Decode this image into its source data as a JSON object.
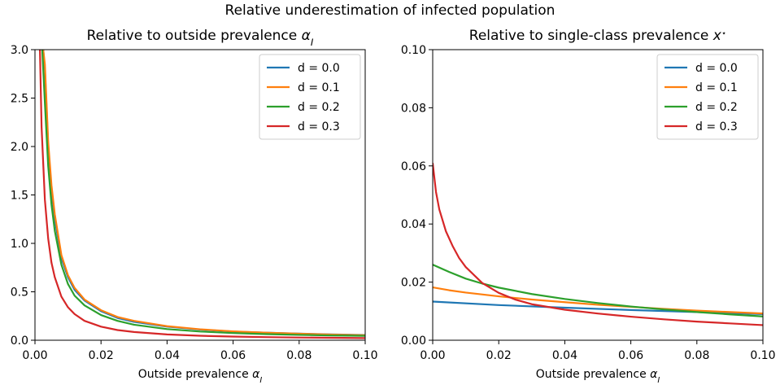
{
  "figure": {
    "suptitle": "Relative underestimation of infected population"
  },
  "colors": {
    "d0": "#1f77b4",
    "d1": "#ff7f0e",
    "d2": "#2ca02c",
    "d3": "#d62728"
  },
  "chart_data": [
    {
      "type": "line",
      "title": "Relative to outside prevalence α_I",
      "xlabel": "Outside prevalence α_I",
      "ylabel": "",
      "xlim": [
        0.0,
        0.1
      ],
      "ylim": [
        0.0,
        3.0
      ],
      "xticks": [
        "0.00",
        "0.02",
        "0.04",
        "0.06",
        "0.08",
        "0.10"
      ],
      "yticks": [
        "0.0",
        "0.5",
        "1.0",
        "1.5",
        "2.0",
        "2.5",
        "3.0"
      ],
      "grid": false,
      "legend": "top-right",
      "series": [
        {
          "name": "d = 0.0",
          "color": "#1f77b4",
          "x": [
            0.0025,
            0.003,
            0.004,
            0.005,
            0.006,
            0.008,
            0.01,
            0.012,
            0.015,
            0.02,
            0.025,
            0.03,
            0.04,
            0.05,
            0.06,
            0.07,
            0.08,
            0.09,
            0.1
          ],
          "y": [
            3.0,
            2.8,
            2.0,
            1.55,
            1.25,
            0.85,
            0.65,
            0.52,
            0.41,
            0.3,
            0.23,
            0.19,
            0.14,
            0.11,
            0.09,
            0.078,
            0.068,
            0.06,
            0.054
          ]
        },
        {
          "name": "d = 0.1",
          "color": "#ff7f0e",
          "x": [
            0.0025,
            0.003,
            0.004,
            0.005,
            0.006,
            0.008,
            0.01,
            0.012,
            0.015,
            0.02,
            0.025,
            0.03,
            0.04,
            0.05,
            0.06,
            0.07,
            0.08,
            0.09,
            0.1
          ],
          "y": [
            3.0,
            2.85,
            2.05,
            1.6,
            1.3,
            0.88,
            0.67,
            0.54,
            0.42,
            0.31,
            0.24,
            0.2,
            0.145,
            0.113,
            0.092,
            0.078,
            0.067,
            0.058,
            0.052
          ]
        },
        {
          "name": "d = 0.2",
          "color": "#2ca02c",
          "x": [
            0.0022,
            0.003,
            0.004,
            0.005,
            0.006,
            0.008,
            0.01,
            0.012,
            0.015,
            0.02,
            0.025,
            0.03,
            0.04,
            0.05,
            0.06,
            0.07,
            0.08,
            0.09,
            0.1
          ],
          "y": [
            3.0,
            2.45,
            1.8,
            1.4,
            1.13,
            0.78,
            0.58,
            0.46,
            0.36,
            0.26,
            0.2,
            0.16,
            0.115,
            0.09,
            0.074,
            0.063,
            0.055,
            0.049,
            0.045
          ]
        },
        {
          "name": "d = 0.3",
          "color": "#d62728",
          "x": [
            0.0015,
            0.002,
            0.003,
            0.004,
            0.005,
            0.006,
            0.008,
            0.01,
            0.012,
            0.015,
            0.02,
            0.025,
            0.03,
            0.04,
            0.05,
            0.06,
            0.07,
            0.08,
            0.09,
            0.1
          ],
          "y": [
            3.0,
            2.2,
            1.45,
            1.05,
            0.8,
            0.65,
            0.45,
            0.34,
            0.27,
            0.2,
            0.14,
            0.105,
            0.085,
            0.06,
            0.046,
            0.038,
            0.032,
            0.028,
            0.025,
            0.022
          ]
        }
      ]
    },
    {
      "type": "line",
      "title": "Relative to single-class prevalence x*",
      "xlabel": "Outside prevalence α_I",
      "ylabel": "",
      "xlim": [
        0.0,
        0.1
      ],
      "ylim": [
        0.0,
        0.1
      ],
      "xticks": [
        "0.00",
        "0.02",
        "0.04",
        "0.06",
        "0.08",
        "0.10"
      ],
      "yticks": [
        "0.00",
        "0.02",
        "0.04",
        "0.06",
        "0.08",
        "0.10"
      ],
      "grid": false,
      "legend": "top-right",
      "series": [
        {
          "name": "d = 0.0",
          "color": "#1f77b4",
          "x": [
            0.0,
            0.02,
            0.04,
            0.06,
            0.08,
            0.1
          ],
          "y": [
            0.0133,
            0.0121,
            0.0112,
            0.0104,
            0.0097,
            0.009
          ]
        },
        {
          "name": "d = 0.1",
          "color": "#ff7f0e",
          "x": [
            0.0,
            0.005,
            0.01,
            0.02,
            0.03,
            0.04,
            0.05,
            0.06,
            0.07,
            0.08,
            0.09,
            0.1
          ],
          "y": [
            0.0182,
            0.0172,
            0.0164,
            0.0151,
            0.014,
            0.0131,
            0.0122,
            0.0115,
            0.0108,
            0.0102,
            0.0097,
            0.0092
          ]
        },
        {
          "name": "d = 0.2",
          "color": "#2ca02c",
          "x": [
            0.0,
            0.005,
            0.01,
            0.015,
            0.02,
            0.03,
            0.04,
            0.05,
            0.06,
            0.07,
            0.08,
            0.09,
            0.1
          ],
          "y": [
            0.026,
            0.0235,
            0.0212,
            0.0195,
            0.0181,
            0.0159,
            0.0142,
            0.0128,
            0.0116,
            0.0106,
            0.0097,
            0.0089,
            0.0082
          ]
        },
        {
          "name": "d = 0.3",
          "color": "#d62728",
          "x": [
            0.0,
            0.001,
            0.002,
            0.004,
            0.006,
            0.008,
            0.01,
            0.015,
            0.02,
            0.025,
            0.03,
            0.04,
            0.05,
            0.06,
            0.07,
            0.08,
            0.09,
            0.1
          ],
          "y": [
            0.061,
            0.051,
            0.045,
            0.0375,
            0.0325,
            0.0283,
            0.0252,
            0.0197,
            0.0163,
            0.014,
            0.0124,
            0.0105,
            0.0092,
            0.0081,
            0.0072,
            0.0064,
            0.0058,
            0.0052
          ]
        }
      ]
    }
  ]
}
